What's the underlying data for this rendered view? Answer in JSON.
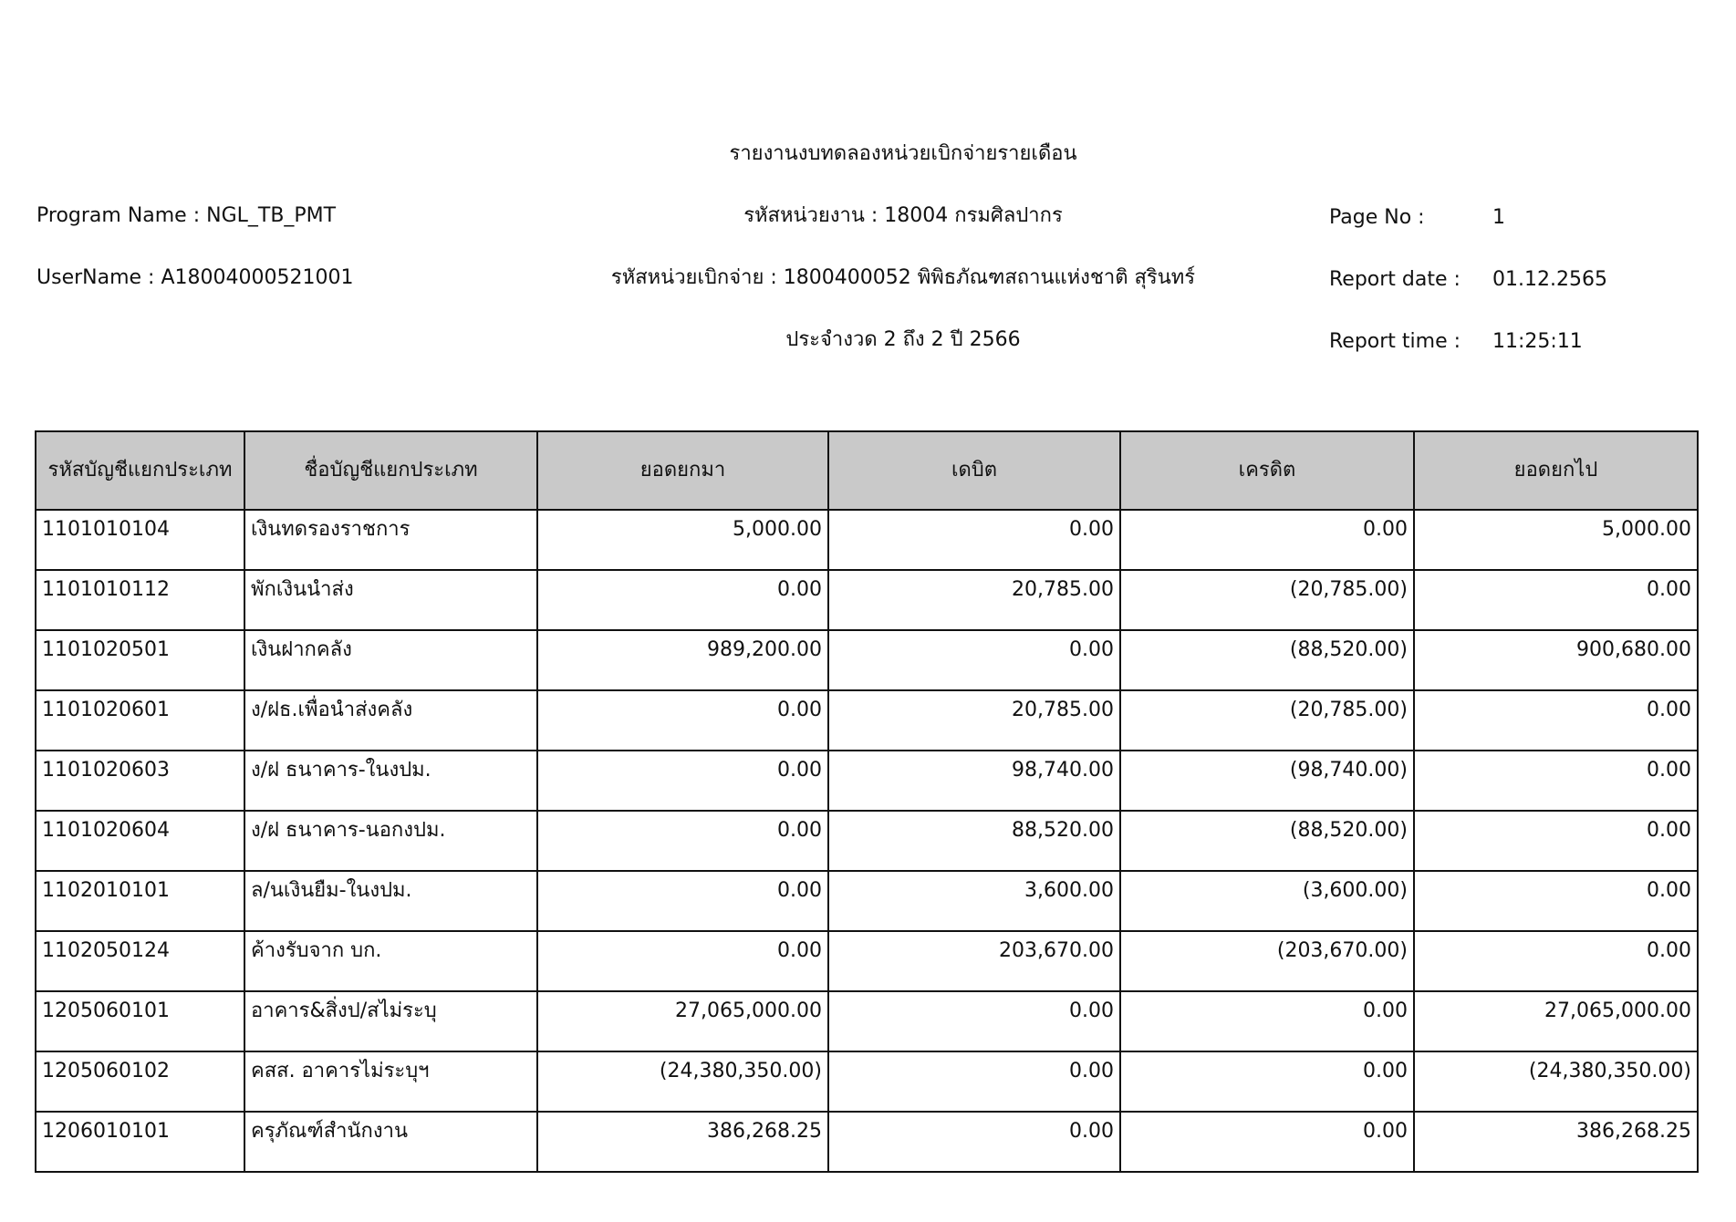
{
  "header": {
    "title": "รายงานงบทดลองหน่วยเบิกจ่ายรายเดือน",
    "program_name": "Program Name : NGL_TB_PMT",
    "username": "UserName : A18004000521001",
    "agency": "รหัสหน่วยงาน : 18004 กรมศิลปากร",
    "disbursement_unit": "รหัสหน่วยเบิกจ่าย : 1800400052 พิพิธภัณฑสถานแห่งชาติ สุรินทร์",
    "period": "ประจำงวด 2 ถึง 2 ปี 2566",
    "page_no_label": "Page No :",
    "page_no": "1",
    "report_date_label": "Report date :",
    "report_date": "01.12.2565",
    "report_time_label": "Report time :",
    "report_time": "11:25:11"
  },
  "table": {
    "columns": [
      "รหัสบัญชีแยกประเภท",
      "ชื่อบัญชีแยกประเภท",
      "ยอดยกมา",
      "เดบิต",
      "เครดิต",
      "ยอดยกไป"
    ],
    "rows": [
      [
        "1101010104",
        "เงินทดรองราชการ",
        "5,000.00",
        "0.00",
        "0.00",
        "5,000.00"
      ],
      [
        "1101010112",
        "พักเงินนำส่ง",
        "0.00",
        "20,785.00",
        "(20,785.00)",
        "0.00"
      ],
      [
        "1101020501",
        "เงินฝากคลัง",
        "989,200.00",
        "0.00",
        "(88,520.00)",
        "900,680.00"
      ],
      [
        "1101020601",
        "ง/ฝธ.เพื่อนำส่งคลัง",
        "0.00",
        "20,785.00",
        "(20,785.00)",
        "0.00"
      ],
      [
        "1101020603",
        "ง/ฝ ธนาคาร-ในงปม.",
        "0.00",
        "98,740.00",
        "(98,740.00)",
        "0.00"
      ],
      [
        "1101020604",
        "ง/ฝ ธนาคาร-นอกงปม.",
        "0.00",
        "88,520.00",
        "(88,520.00)",
        "0.00"
      ],
      [
        "1102010101",
        "ล/นเงินยืม-ในงปม.",
        "0.00",
        "3,600.00",
        "(3,600.00)",
        "0.00"
      ],
      [
        "1102050124",
        "ค้างรับจาก บก.",
        "0.00",
        "203,670.00",
        "(203,670.00)",
        "0.00"
      ],
      [
        "1205060101",
        "อาคาร&สิ่งป/สไม่ระบุ",
        "27,065,000.00",
        "0.00",
        "0.00",
        "27,065,000.00"
      ],
      [
        "1205060102",
        "คสส. อาคารไม่ระบุฯ",
        "(24,380,350.00)",
        "0.00",
        "0.00",
        "(24,380,350.00)"
      ],
      [
        "1206010101",
        "ครุภัณฑ์สำนักงาน",
        "386,268.25",
        "0.00",
        "0.00",
        "386,268.25"
      ]
    ]
  }
}
